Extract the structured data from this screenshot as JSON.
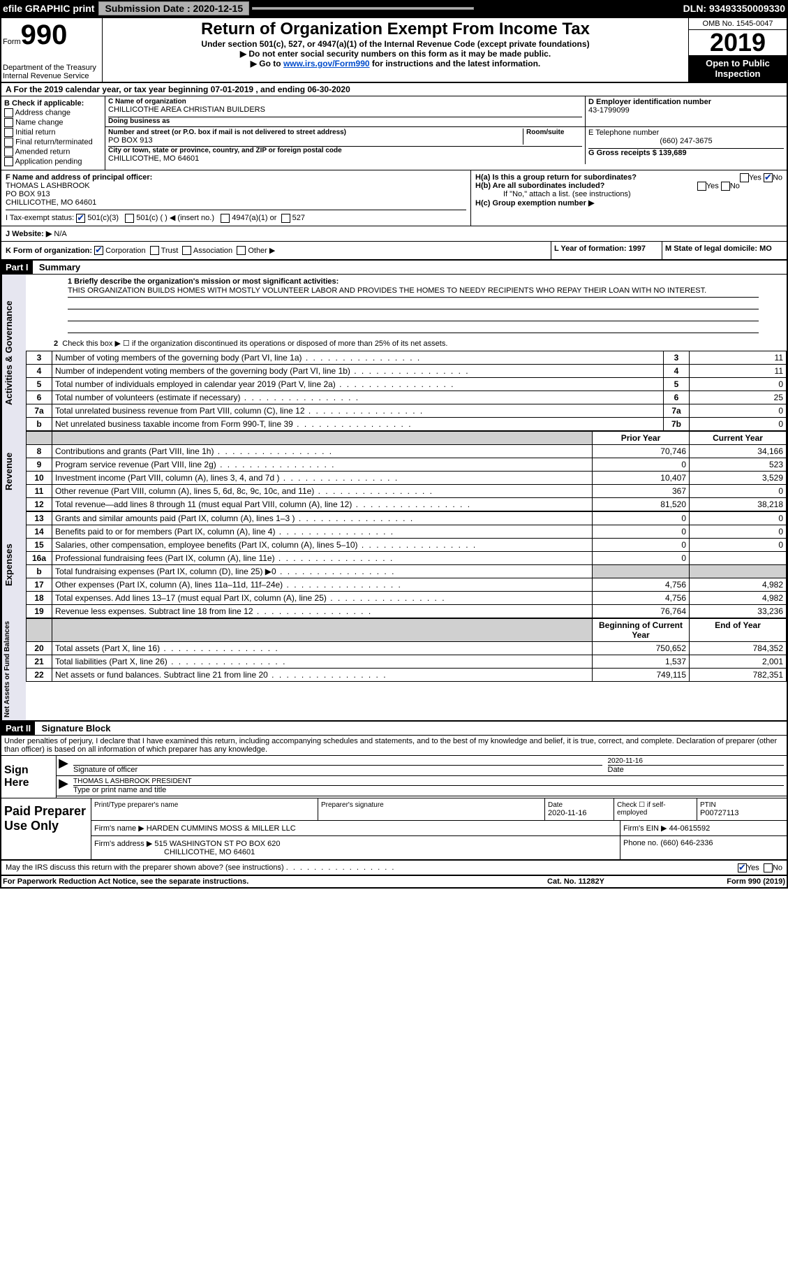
{
  "topbar": {
    "efile": "efile GRAPHIC print",
    "submission_label": "Submission Date : 2020-12-15",
    "dln": "DLN: 93493350009330"
  },
  "header": {
    "form_label": "Form",
    "form_number": "990",
    "title": "Return of Organization Exempt From Income Tax",
    "subtitle": "Under section 501(c), 527, or 4947(a)(1) of the Internal Revenue Code (except private foundations)",
    "note1": "▶ Do not enter social security numbers on this form as it may be made public.",
    "note2_pre": "▶ Go to ",
    "note2_link": "www.irs.gov/Form990",
    "note2_post": " for instructions and the latest information.",
    "omb": "OMB No. 1545-0047",
    "year": "2019",
    "open": "Open to Public Inspection",
    "dept": "Department of the Treasury\nInternal Revenue Service"
  },
  "line_a": "A For the 2019 calendar year, or tax year beginning 07-01-2019    , and ending 06-30-2020",
  "section_b": {
    "label": "B Check if applicable:",
    "opts": [
      "Address change",
      "Name change",
      "Initial return",
      "Final return/terminated",
      "Amended return",
      "Application pending"
    ]
  },
  "section_c": {
    "name_label": "C Name of organization",
    "name": "CHILLICOTHE AREA CHRISTIAN BUILDERS",
    "dba_label": "Doing business as",
    "addr_label": "Number and street (or P.O. box if mail is not delivered to street address)",
    "room_label": "Room/suite",
    "addr": "PO BOX 913",
    "city_label": "City or town, state or province, country, and ZIP or foreign postal code",
    "city": "CHILLICOTHE, MO  64601"
  },
  "section_d": {
    "ein_label": "D Employer identification number",
    "ein": "43-1799099",
    "phone_label": "E Telephone number",
    "phone": "(660) 247-3675",
    "gross_label": "G Gross receipts $ 139,689"
  },
  "section_f": {
    "label": "F  Name and address of principal officer:",
    "name": "THOMAS L ASHBROOK",
    "addr1": "PO BOX 913",
    "addr2": "CHILLICOTHE, MO  64601"
  },
  "section_h": {
    "ha": "H(a)  Is this a group return for subordinates?",
    "hb": "H(b)  Are all subordinates included?",
    "hb_note": "If \"No,\" attach a list. (see instructions)",
    "hc": "H(c)  Group exemption number ▶",
    "yes": "Yes",
    "no": "No"
  },
  "section_i": {
    "label": "I    Tax-exempt status:",
    "opt1": "501(c)(3)",
    "opt2": "501(c) (  ) ◀ (insert no.)",
    "opt3": "4947(a)(1) or",
    "opt4": "527"
  },
  "section_j": {
    "label": "J   Website: ▶",
    "value": "N/A"
  },
  "section_k": {
    "label": "K Form of organization:",
    "opts": [
      "Corporation",
      "Trust",
      "Association",
      "Other ▶"
    ]
  },
  "section_l": {
    "label": "L Year of formation: 1997"
  },
  "section_m": {
    "label": "M State of legal domicile: MO"
  },
  "part1": {
    "header": "Part I",
    "title": "Summary",
    "q1_label": "1  Briefly describe the organization's mission or most significant activities:",
    "q1_text": "THIS ORGANIZATION BUILDS HOMES WITH MOSTLY VOLUNTEER LABOR AND PROVIDES THE HOMES TO NEEDY RECIPIENTS WHO REPAY THEIR LOAN WITH NO INTEREST.",
    "q2": "Check this box ▶ ☐  if the organization discontinued its operations or disposed of more than 25% of its net assets.",
    "prior_year": "Prior Year",
    "current_year": "Current Year",
    "begin_year": "Beginning of Current Year",
    "end_year": "End of Year"
  },
  "governance": {
    "rows": [
      {
        "n": "3",
        "lbl": "Number of voting members of the governing body (Part VI, line 1a)",
        "box": "3",
        "val": "11"
      },
      {
        "n": "4",
        "lbl": "Number of independent voting members of the governing body (Part VI, line 1b)",
        "box": "4",
        "val": "11"
      },
      {
        "n": "5",
        "lbl": "Total number of individuals employed in calendar year 2019 (Part V, line 2a)",
        "box": "5",
        "val": "0"
      },
      {
        "n": "6",
        "lbl": "Total number of volunteers (estimate if necessary)",
        "box": "6",
        "val": "25"
      },
      {
        "n": "7a",
        "lbl": "Total unrelated business revenue from Part VIII, column (C), line 12",
        "box": "7a",
        "val": "0"
      },
      {
        "n": "b",
        "lbl": "Net unrelated business taxable income from Form 990-T, line 39",
        "box": "7b",
        "val": "0"
      }
    ]
  },
  "revenue": {
    "rows": [
      {
        "n": "8",
        "lbl": "Contributions and grants (Part VIII, line 1h)",
        "py": "70,746",
        "cy": "34,166"
      },
      {
        "n": "9",
        "lbl": "Program service revenue (Part VIII, line 2g)",
        "py": "0",
        "cy": "523"
      },
      {
        "n": "10",
        "lbl": "Investment income (Part VIII, column (A), lines 3, 4, and 7d )",
        "py": "10,407",
        "cy": "3,529"
      },
      {
        "n": "11",
        "lbl": "Other revenue (Part VIII, column (A), lines 5, 6d, 8c, 9c, 10c, and 11e)",
        "py": "367",
        "cy": "0"
      },
      {
        "n": "12",
        "lbl": "Total revenue—add lines 8 through 11 (must equal Part VIII, column (A), line 12)",
        "py": "81,520",
        "cy": "38,218"
      }
    ]
  },
  "expenses": {
    "rows": [
      {
        "n": "13",
        "lbl": "Grants and similar amounts paid (Part IX, column (A), lines 1–3 )",
        "py": "0",
        "cy": "0"
      },
      {
        "n": "14",
        "lbl": "Benefits paid to or for members (Part IX, column (A), line 4)",
        "py": "0",
        "cy": "0"
      },
      {
        "n": "15",
        "lbl": "Salaries, other compensation, employee benefits (Part IX, column (A), lines 5–10)",
        "py": "0",
        "cy": "0"
      },
      {
        "n": "16a",
        "lbl": "Professional fundraising fees (Part IX, column (A), line 11e)",
        "py": "0",
        "cy": ""
      },
      {
        "n": "b",
        "lbl": "Total fundraising expenses (Part IX, column (D), line 25) ▶0",
        "py": "",
        "cy": "",
        "grey": true
      },
      {
        "n": "17",
        "lbl": "Other expenses (Part IX, column (A), lines 11a–11d, 11f–24e)",
        "py": "4,756",
        "cy": "4,982"
      },
      {
        "n": "18",
        "lbl": "Total expenses. Add lines 13–17 (must equal Part IX, column (A), line 25)",
        "py": "4,756",
        "cy": "4,982"
      },
      {
        "n": "19",
        "lbl": "Revenue less expenses. Subtract line 18 from line 12",
        "py": "76,764",
        "cy": "33,236"
      }
    ]
  },
  "netassets": {
    "rows": [
      {
        "n": "20",
        "lbl": "Total assets (Part X, line 16)",
        "py": "750,652",
        "cy": "784,352"
      },
      {
        "n": "21",
        "lbl": "Total liabilities (Part X, line 26)",
        "py": "1,537",
        "cy": "2,001"
      },
      {
        "n": "22",
        "lbl": "Net assets or fund balances. Subtract line 21 from line 20",
        "py": "749,115",
        "cy": "782,351"
      }
    ]
  },
  "part2": {
    "header": "Part II",
    "title": "Signature Block",
    "declaration": "Under penalties of perjury, I declare that I have examined this return, including accompanying schedules and statements, and to the best of my knowledge and belief, it is true, correct, and complete. Declaration of preparer (other than officer) is based on all information of which preparer has any knowledge."
  },
  "sign": {
    "here": "Sign Here",
    "sig_label": "Signature of officer",
    "date_label": "Date",
    "date_val": "2020-11-16",
    "name_val": "THOMAS L ASHBROOK  PRESIDENT",
    "name_label": "Type or print name and title"
  },
  "paid": {
    "title": "Paid Preparer Use Only",
    "col1": "Print/Type preparer's name",
    "col2": "Preparer's signature",
    "col3_label": "Date",
    "col3_val": "2020-11-16",
    "col4": "Check ☐ if self-employed",
    "ptin_label": "PTIN",
    "ptin": "P00727113",
    "firm_name_label": "Firm's name    ▶",
    "firm_name": "HARDEN CUMMINS MOSS & MILLER LLC",
    "firm_ein_label": "Firm's EIN ▶",
    "firm_ein": "44-0615592",
    "firm_addr_label": "Firm's address ▶",
    "firm_addr1": "515 WASHINGTON ST PO BOX 620",
    "firm_addr2": "CHILLICOTHE, MO  64601",
    "phone_label": "Phone no.",
    "phone": "(660) 646-2336"
  },
  "discuss": {
    "text": "May the IRS discuss this return with the preparer shown above? (see instructions)",
    "yes": "Yes",
    "no": "No"
  },
  "footer": {
    "left": "For Paperwork Reduction Act Notice, see the separate instructions.",
    "mid": "Cat. No. 11282Y",
    "right": "Form 990 (2019)"
  }
}
